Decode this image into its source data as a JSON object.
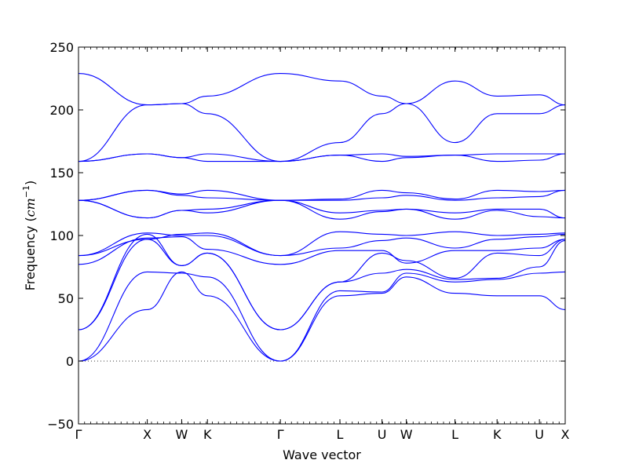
{
  "chart_data": {
    "type": "line",
    "title": "",
    "xlabel": "Wave vector",
    "ylabel": "Frequency ($cm^{-1}$)",
    "ylabel_parts": {
      "main": "Frequency (",
      "unit": "cm",
      "sup": "−1",
      "close": ")"
    },
    "ylim": [
      -50,
      250
    ],
    "yticks": [
      -50,
      0,
      50,
      100,
      150,
      200,
      250
    ],
    "grid": false,
    "line_color": "#0000ff",
    "zero_line": {
      "y": 0,
      "style": "dotted"
    },
    "x_ticks": [
      {
        "label": "Γ",
        "x": 0.0
      },
      {
        "label": "X",
        "x": 0.1413
      },
      {
        "label": "W",
        "x": 0.212
      },
      {
        "label": "K",
        "x": 0.2649
      },
      {
        "label": "Γ",
        "x": 0.4148
      },
      {
        "label": "L",
        "x": 0.5371
      },
      {
        "label": "U",
        "x": 0.6236
      },
      {
        "label": "W",
        "x": 0.6736
      },
      {
        "label": "L",
        "x": 0.7736
      },
      {
        "label": "K",
        "x": 0.86
      },
      {
        "label": "U",
        "x": 0.947
      },
      {
        "label": "X",
        "x": 1.0
      }
    ],
    "series": [
      {
        "x": [
          0,
          0.1413,
          0.212,
          0.2649,
          0.4148,
          0.5371,
          0.6236,
          0.6736,
          0.7736,
          0.86,
          0.947,
          1.0
        ],
        "y": [
          0,
          41,
          71,
          52,
          0,
          52,
          54,
          67,
          54,
          52,
          52,
          41
        ]
      },
      {
        "x": [
          0,
          0.1413,
          0.212,
          0.2649,
          0.4148,
          0.5371,
          0.6236,
          0.6736,
          0.7736,
          0.86,
          0.947,
          1.0
        ],
        "y": [
          0,
          71,
          70,
          67,
          0,
          56,
          55,
          70,
          63,
          65,
          70,
          71
        ]
      },
      {
        "x": [
          0,
          0.1413,
          0.212,
          0.2649,
          0.4148,
          0.5371,
          0.6236,
          0.6736,
          0.7736,
          0.86,
          0.947,
          1.0
        ],
        "y": [
          25,
          97,
          76,
          86,
          25,
          63,
          70,
          73,
          65,
          66,
          75,
          96
        ]
      },
      {
        "x": [
          0,
          0.1413,
          0.212,
          0.2649,
          0.4148,
          0.5371,
          0.6236,
          0.6736,
          0.7736,
          0.86,
          0.947,
          1.0
        ],
        "y": [
          25,
          101,
          76,
          86,
          25,
          63,
          86,
          80,
          66,
          86,
          84,
          97
        ]
      },
      {
        "x": [
          0,
          0.1413,
          0.212,
          0.2649,
          0.4148,
          0.5371,
          0.6236,
          0.6736,
          0.7736,
          0.86,
          0.947,
          1.0
        ],
        "y": [
          77,
          98,
          99,
          89,
          77,
          88,
          88,
          78,
          88,
          88,
          90,
          97
        ]
      },
      {
        "x": [
          0,
          0.1413,
          0.212,
          0.2649,
          0.4148,
          0.5371,
          0.6236,
          0.6736,
          0.7736,
          0.86,
          0.947,
          1.0
        ],
        "y": [
          84,
          102,
          100,
          100,
          84,
          90,
          96,
          98,
          90,
          97,
          99,
          101
        ]
      },
      {
        "x": [
          0,
          0.1413,
          0.212,
          0.2649,
          0.4148,
          0.5371,
          0.6236,
          0.6736,
          0.7736,
          0.86,
          0.947,
          1.0
        ],
        "y": [
          84,
          97,
          101,
          102,
          84,
          103,
          101,
          100,
          103,
          100,
          101,
          102
        ]
      },
      {
        "x": [
          0,
          0.1413,
          0.212,
          0.2649,
          0.4148,
          0.5371,
          0.6236,
          0.6736,
          0.7736,
          0.86,
          0.947,
          1.0
        ],
        "y": [
          128,
          114,
          120,
          118,
          128,
          113,
          119,
          121,
          113,
          120,
          115,
          114
        ]
      },
      {
        "x": [
          0,
          0.1413,
          0.212,
          0.2649,
          0.4148,
          0.5371,
          0.6236,
          0.6736,
          0.7736,
          0.86,
          0.947,
          1.0
        ],
        "y": [
          128,
          114,
          120,
          121,
          128,
          118,
          120,
          121,
          118,
          121,
          121,
          114
        ]
      },
      {
        "x": [
          0,
          0.1413,
          0.212,
          0.2649,
          0.4148,
          0.5371,
          0.6236,
          0.6736,
          0.7736,
          0.86,
          0.947,
          1.0
        ],
        "y": [
          128,
          136,
          132,
          130,
          128,
          128,
          130,
          132,
          128,
          130,
          131,
          136
        ]
      },
      {
        "x": [
          0,
          0.1413,
          0.212,
          0.2649,
          0.4148,
          0.5371,
          0.6236,
          0.6736,
          0.7736,
          0.86,
          0.947,
          1.0
        ],
        "y": [
          128,
          136,
          133,
          136,
          128,
          129,
          136,
          134,
          129,
          136,
          135,
          136
        ]
      },
      {
        "x": [
          0,
          0.1413,
          0.212,
          0.2649,
          0.4148,
          0.5371,
          0.6236,
          0.6736,
          0.7736,
          0.86,
          0.947,
          1.0
        ],
        "y": [
          159,
          165,
          162,
          159,
          159,
          164,
          159,
          162,
          164,
          159,
          160,
          165
        ]
      },
      {
        "x": [
          0,
          0.1413,
          0.212,
          0.2649,
          0.4148,
          0.5371,
          0.6236,
          0.6736,
          0.7736,
          0.86,
          0.947,
          1.0
        ],
        "y": [
          159,
          165,
          162,
          165,
          159,
          164,
          165,
          163,
          164,
          165,
          165,
          165
        ]
      },
      {
        "x": [
          0,
          0.1413,
          0.212,
          0.2649,
          0.4148,
          0.5371,
          0.6236,
          0.6736,
          0.7736,
          0.86,
          0.947,
          1.0
        ],
        "y": [
          159,
          204,
          205,
          197,
          159,
          174,
          197,
          205,
          174,
          197,
          197,
          204
        ]
      },
      {
        "x": [
          0,
          0.1413,
          0.212,
          0.2649,
          0.4148,
          0.5371,
          0.6236,
          0.6736,
          0.7736,
          0.86,
          0.947,
          1.0
        ],
        "y": [
          229,
          204,
          205,
          211,
          229,
          223,
          211,
          205,
          223,
          211,
          212,
          204
        ]
      }
    ]
  }
}
